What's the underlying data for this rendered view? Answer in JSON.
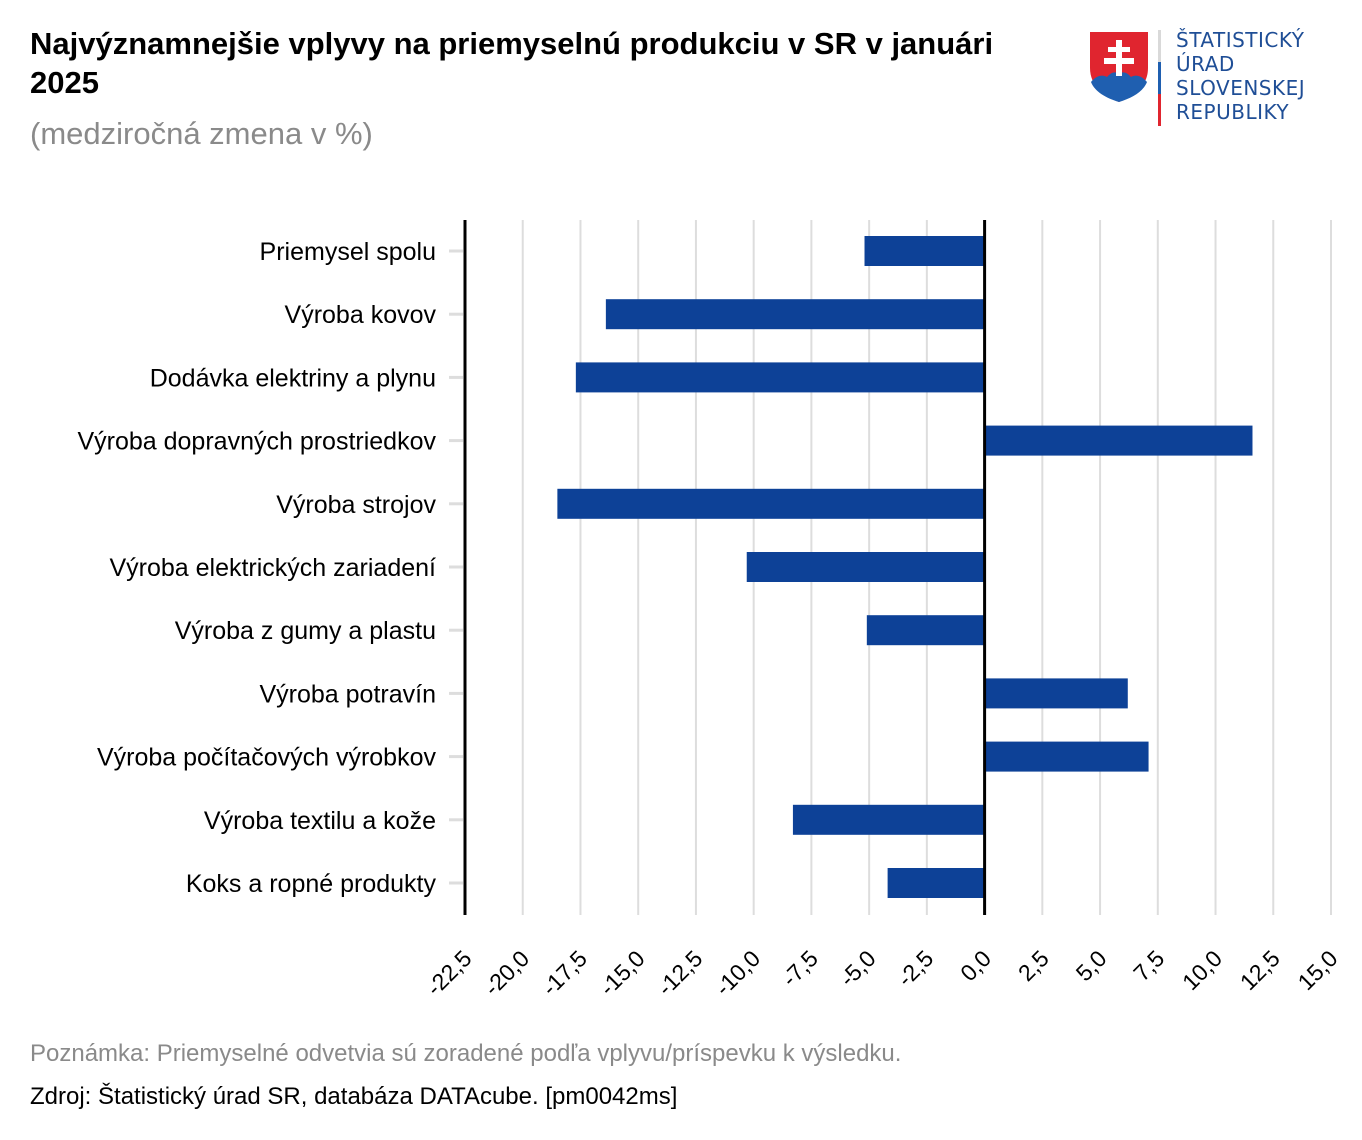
{
  "header": {
    "title": "Najvýznamnejšie vplyvy na priemyselnú produkciu v SR v januári 2025",
    "subtitle": "(medziročná zmena v %)"
  },
  "logo": {
    "lines": [
      "ŠTATISTICKÝ",
      "ÚRAD",
      "SLOVENSKEJ",
      "REPUBLIKY"
    ],
    "icon": "slovak-coat-of-arms-icon"
  },
  "colors": {
    "bar": "#0d4197",
    "axis": "#000000",
    "grid": "#dddddd",
    "logo_text": "#1f4e96",
    "logo_red": "#e0252f",
    "logo_blue": "#1f5fb0"
  },
  "chart_data": {
    "type": "bar",
    "orientation": "horizontal",
    "title": "Najvýznamnejšie vplyvy na priemyselnú produkciu v SR v januári 2025",
    "subtitle": "(medziročná zmena v %)",
    "xlabel": "",
    "ylabel": "",
    "categories": [
      "Priemysel spolu",
      "Výroba kovov",
      "Dodávka elektriny a plynu",
      "Výroba dopravných prostriedkov",
      "Výroba strojov",
      "Výroba elektrických zariadení",
      "Výroba z gumy a plastu",
      "Výroba potravín",
      "Výroba počítačových výrobkov",
      "Výroba textilu a kože",
      "Koks a ropné produkty"
    ],
    "values": [
      -5.2,
      -16.4,
      -17.7,
      11.6,
      -18.5,
      -10.3,
      -5.1,
      6.2,
      7.1,
      -8.3,
      -4.2
    ],
    "xlim": [
      -22.5,
      15.0
    ],
    "xticks": [
      -22.5,
      -20.0,
      -17.5,
      -15.0,
      -12.5,
      -10.0,
      -7.5,
      -5.0,
      -2.5,
      0.0,
      2.5,
      5.0,
      7.5,
      10.0,
      12.5,
      15.0
    ],
    "xtick_labels": [
      "-22,5",
      "-20,0",
      "-17,5",
      "-15,0",
      "-12,5",
      "-10,0",
      "-7,5",
      "-5,0",
      "-2,5",
      "0,0",
      "2,5",
      "5,0",
      "7,5",
      "10,0",
      "12,5",
      "15,0"
    ],
    "grid": true,
    "legend": "none"
  },
  "footer": {
    "note": "Poznámka: Priemyselné odvetvia sú zoradené podľa vplyvu/príspevku k výsledku.",
    "source": "Zdroj: Štatistický úrad SR, databáza DATAcube. [pm0042ms]"
  }
}
